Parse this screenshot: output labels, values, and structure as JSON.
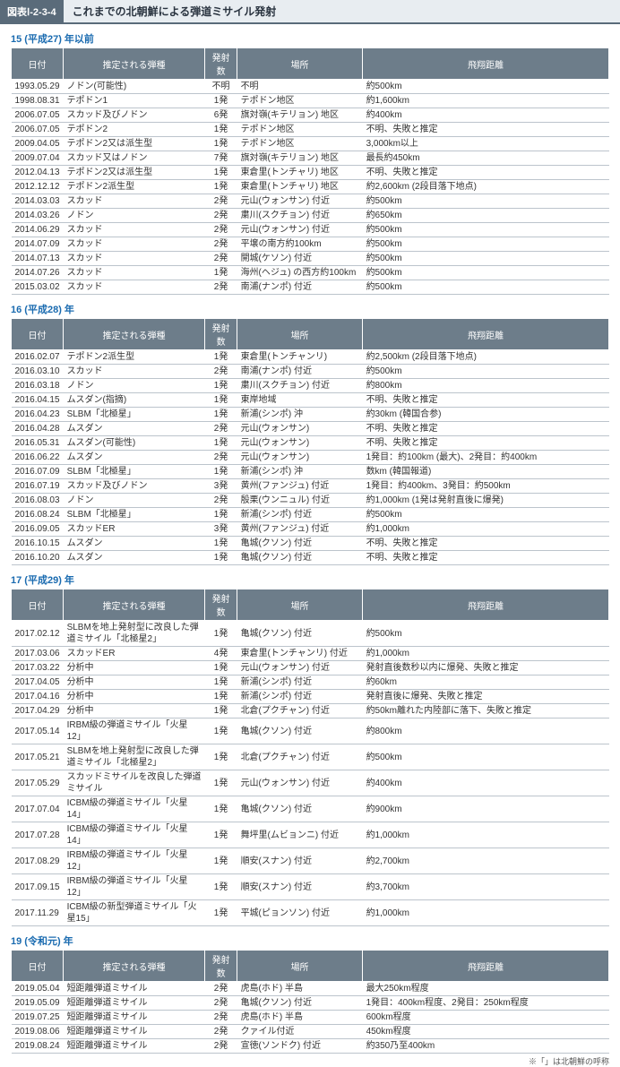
{
  "header": {
    "badge": "図表Ⅰ-2-3-4",
    "title": "これまでの北朝鮮による弾道ミサイル発射"
  },
  "columns": [
    "日付",
    "推定される弾種",
    "発射数",
    "場所",
    "飛翔距離"
  ],
  "footnote": "※「」は北朝鮮の呼称",
  "sections": [
    {
      "label": "15 (平成27) 年以前",
      "rows": [
        [
          "1993.05.29",
          "ノドン(可能性)",
          "不明",
          "不明",
          "約500km"
        ],
        [
          "1998.08.31",
          "テポドン1",
          "1発",
          "テポドン地区",
          "約1,600km"
        ],
        [
          "2006.07.05",
          "スカッド及びノドン",
          "6発",
          "旗対嶺(キテリョン) 地区",
          "約400km"
        ],
        [
          "2006.07.05",
          "テポドン2",
          "1発",
          "テポドン地区",
          "不明、失敗と推定"
        ],
        [
          "2009.04.05",
          "テポドン2又は派生型",
          "1発",
          "テポドン地区",
          "3,000km以上"
        ],
        [
          "2009.07.04",
          "スカッド又はノドン",
          "7発",
          "旗対嶺(キテリョン) 地区",
          "最長約450km"
        ],
        [
          "2012.04.13",
          "テポドン2又は派生型",
          "1発",
          "東倉里(トンチャリ) 地区",
          "不明、失敗と推定"
        ],
        [
          "2012.12.12",
          "テポドン2派生型",
          "1発",
          "東倉里(トンチャリ) 地区",
          "約2,600km (2段目落下地点)"
        ],
        [
          "2014.03.03",
          "スカッド",
          "2発",
          "元山(ウォンサン) 付近",
          "約500km"
        ],
        [
          "2014.03.26",
          "ノドン",
          "2発",
          "粛川(スクチョン) 付近",
          "約650km"
        ],
        [
          "2014.06.29",
          "スカッド",
          "2発",
          "元山(ウォンサン) 付近",
          "約500km"
        ],
        [
          "2014.07.09",
          "スカッド",
          "2発",
          "平壌の南方約100km",
          "約500km"
        ],
        [
          "2014.07.13",
          "スカッド",
          "2発",
          "開城(ケソン) 付近",
          "約500km"
        ],
        [
          "2014.07.26",
          "スカッド",
          "1発",
          "海州(ヘジュ) の西方約100km",
          "約500km"
        ],
        [
          "2015.03.02",
          "スカッド",
          "2発",
          "南浦(ナンポ) 付近",
          "約500km"
        ]
      ]
    },
    {
      "label": "16 (平成28) 年",
      "rows": [
        [
          "2016.02.07",
          "テポドン2派生型",
          "1発",
          "東倉里(トンチャンリ)",
          "約2,500km (2段目落下地点)"
        ],
        [
          "2016.03.10",
          "スカッド",
          "2発",
          "南浦(ナンポ) 付近",
          "約500km"
        ],
        [
          "2016.03.18",
          "ノドン",
          "1発",
          "粛川(スクチョン) 付近",
          "約800km"
        ],
        [
          "2016.04.15",
          "ムスダン(指摘)",
          "1発",
          "東岸地域",
          "不明、失敗と推定"
        ],
        [
          "2016.04.23",
          "SLBM「北極星」",
          "1発",
          "新浦(シンポ) 沖",
          "約30km (韓国合参)"
        ],
        [
          "2016.04.28",
          "ムスダン",
          "2発",
          "元山(ウォンサン)",
          "不明、失敗と推定"
        ],
        [
          "2016.05.31",
          "ムスダン(可能性)",
          "1発",
          "元山(ウォンサン)",
          "不明、失敗と推定"
        ],
        [
          "2016.06.22",
          "ムスダン",
          "2発",
          "元山(ウォンサン)",
          "1発目：約100km (最大)、2発目：約400km"
        ],
        [
          "2016.07.09",
          "SLBM「北極星」",
          "1発",
          "新浦(シンポ) 沖",
          "数km (韓国報道)"
        ],
        [
          "2016.07.19",
          "スカッド及びノドン",
          "3発",
          "黄州(ファンジュ) 付近",
          "1発目：約400km、3発目：約500km"
        ],
        [
          "2016.08.03",
          "ノドン",
          "2発",
          "殷栗(ウンニュル) 付近",
          "約1,000km (1発は発射直後に爆発)"
        ],
        [
          "2016.08.24",
          "SLBM「北極星」",
          "1発",
          "新浦(シンポ) 付近",
          "約500km"
        ],
        [
          "2016.09.05",
          "スカッドER",
          "3発",
          "黄州(ファンジュ) 付近",
          "約1,000km"
        ],
        [
          "2016.10.15",
          "ムスダン",
          "1発",
          "亀城(クソン) 付近",
          "不明、失敗と推定"
        ],
        [
          "2016.10.20",
          "ムスダン",
          "1発",
          "亀城(クソン) 付近",
          "不明、失敗と推定"
        ]
      ]
    },
    {
      "label": "17 (平成29) 年",
      "rows": [
        [
          "2017.02.12",
          "SLBMを地上発射型に改良した弾道ミサイル「北極星2」",
          "1発",
          "亀城(クソン) 付近",
          "約500km"
        ],
        [
          "2017.03.06",
          "スカッドER",
          "4発",
          "東倉里(トンチャンリ) 付近",
          "約1,000km"
        ],
        [
          "2017.03.22",
          "分析中",
          "1発",
          "元山(ウォンサン) 付近",
          "発射直後数秒以内に爆発、失敗と推定"
        ],
        [
          "2017.04.05",
          "分析中",
          "1発",
          "新浦(シンポ) 付近",
          "約60km"
        ],
        [
          "2017.04.16",
          "分析中",
          "1発",
          "新浦(シンポ) 付近",
          "発射直後に爆発、失敗と推定"
        ],
        [
          "2017.04.29",
          "分析中",
          "1発",
          "北倉(プクチャン) 付近",
          "約50km離れた内陸部に落下、失敗と推定"
        ],
        [
          "2017.05.14",
          "IRBM級の弾道ミサイル「火星12」",
          "1発",
          "亀城(クソン) 付近",
          "約800km"
        ],
        [
          "2017.05.21",
          "SLBMを地上発射型に改良した弾道ミサイル「北極星2」",
          "1発",
          "北倉(プクチャン) 付近",
          "約500km"
        ],
        [
          "2017.05.29",
          "スカッドミサイルを改良した弾道ミサイル",
          "1発",
          "元山(ウォンサン) 付近",
          "約400km"
        ],
        [
          "2017.07.04",
          "ICBM級の弾道ミサイル「火星14」",
          "1発",
          "亀城(クソン) 付近",
          "約900km"
        ],
        [
          "2017.07.28",
          "ICBM級の弾道ミサイル「火星14」",
          "1発",
          "舞坪里(ムビョンニ) 付近",
          "約1,000km"
        ],
        [
          "2017.08.29",
          "IRBM級の弾道ミサイル「火星12」",
          "1発",
          "順安(スナン) 付近",
          "約2,700km"
        ],
        [
          "2017.09.15",
          "IRBM級の弾道ミサイル「火星12」",
          "1発",
          "順安(スナン) 付近",
          "約3,700km"
        ],
        [
          "2017.11.29",
          "ICBM級の新型弾道ミサイル「火星15」",
          "1発",
          "平城(ピョンソン) 付近",
          "約1,000km"
        ]
      ]
    },
    {
      "label": "19 (令和元) 年",
      "rows": [
        [
          "2019.05.04",
          "短距離弾道ミサイル",
          "2発",
          "虎島(ホド) 半島",
          "最大250km程度"
        ],
        [
          "2019.05.09",
          "短距離弾道ミサイル",
          "2発",
          "亀城(クソン) 付近",
          "1発目：400km程度、2発目：250km程度"
        ],
        [
          "2019.07.25",
          "短距離弾道ミサイル",
          "2発",
          "虎島(ホド) 半島",
          "600km程度"
        ],
        [
          "2019.08.06",
          "短距離弾道ミサイル",
          "2発",
          "クァイル付近",
          "450km程度"
        ],
        [
          "2019.08.24",
          "短距離弾道ミサイル",
          "2発",
          "宣徳(ソンドク) 付近",
          "約350乃至400km"
        ]
      ]
    }
  ]
}
